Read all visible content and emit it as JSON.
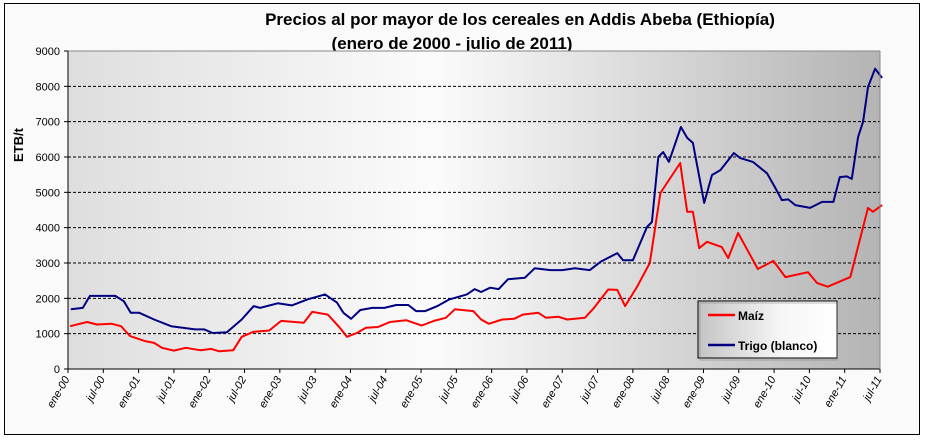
{
  "chart_data": {
    "type": "line",
    "title": "Precios al por mayor de los cereales en Addis Abeba (Ethiopía)",
    "subtitle": "(enero de 2000 - julio de 2011)",
    "xlabel": "",
    "ylabel": "ETB/t",
    "ylim": [
      0,
      9000
    ],
    "yticks": [
      0,
      1000,
      2000,
      3000,
      4000,
      5000,
      6000,
      7000,
      8000,
      9000
    ],
    "xlim": [
      2000.0,
      2011.5
    ],
    "xtick_labels": [
      "ene-00",
      "jul-00",
      "ene-01",
      "jul-01",
      "ene-02",
      "jul-02",
      "ene-03",
      "jul-03",
      "ene-04",
      "jul-04",
      "ene-05",
      "jul-05",
      "ene-06",
      "jul-06",
      "ene-07",
      "jul-07",
      "ene-08",
      "jul-08",
      "ene-09",
      "jul-09",
      "ene-10",
      "jul-10",
      "ene-11",
      "jul-11"
    ],
    "grid": true,
    "legend_position": "bottom-right",
    "x_units": "decimal year",
    "series": [
      {
        "name": "Maíz",
        "color": "#ff0000",
        "x": [
          2000.03,
          2000.27,
          2000.41,
          2000.62,
          2000.75,
          2000.88,
          2001.09,
          2001.22,
          2001.33,
          2001.5,
          2001.67,
          2001.88,
          2002.03,
          2002.14,
          2002.34,
          2002.46,
          2002.62,
          2002.85,
          2003.02,
          2003.34,
          2003.46,
          2003.68,
          2003.85,
          2003.95,
          2004.09,
          2004.22,
          2004.39,
          2004.56,
          2004.79,
          2004.89,
          2005.01,
          2005.18,
          2005.35,
          2005.48,
          2005.74,
          2005.85,
          2005.96,
          2006.15,
          2006.32,
          2006.44,
          2006.66,
          2006.77,
          2006.94,
          2007.07,
          2007.32,
          2007.45,
          2007.65,
          2007.78,
          2007.89,
          2008.06,
          2008.24,
          2008.39,
          2008.67,
          2008.77,
          2008.85,
          2008.94,
          2009.05,
          2009.26,
          2009.35,
          2009.49,
          2009.77,
          2009.99,
          2010.16,
          2010.48,
          2010.61,
          2010.76,
          2011.08,
          2011.33,
          2011.4,
          2011.53
        ],
        "values": [
          1210,
          1330,
          1260,
          1280,
          1210,
          930,
          790,
          740,
          600,
          520,
          600,
          530,
          570,
          500,
          530,
          910,
          1050,
          1090,
          1360,
          1310,
          1620,
          1540,
          1170,
          910,
          1020,
          1170,
          1190,
          1330,
          1380,
          1310,
          1230,
          1360,
          1450,
          1690,
          1640,
          1400,
          1280,
          1400,
          1420,
          1540,
          1590,
          1450,
          1480,
          1400,
          1450,
          1730,
          2250,
          2240,
          1780,
          2330,
          3000,
          4980,
          5830,
          4450,
          4450,
          3420,
          3600,
          3450,
          3140,
          3850,
          2830,
          3060,
          2600,
          2740,
          2430,
          2330,
          2600,
          4560,
          4450,
          4640
        ]
      },
      {
        "name": "Trigo (blanco)",
        "color": "#000080",
        "x": [
          2000.04,
          2000.21,
          2000.31,
          2000.5,
          2000.67,
          2000.79,
          2000.89,
          2001.01,
          2001.22,
          2001.46,
          2001.8,
          2001.93,
          2002.05,
          2002.25,
          2002.46,
          2002.63,
          2002.72,
          2002.97,
          2003.17,
          2003.39,
          2003.64,
          2003.81,
          2003.9,
          2004.01,
          2004.14,
          2004.31,
          2004.48,
          2004.65,
          2004.82,
          2004.93,
          2005.06,
          2005.23,
          2005.4,
          2005.65,
          2005.76,
          2005.85,
          2005.98,
          2006.1,
          2006.23,
          2006.47,
          2006.61,
          2006.83,
          2007.0,
          2007.18,
          2007.39,
          2007.54,
          2007.78,
          2007.86,
          2008.0,
          2008.2,
          2008.27,
          2008.36,
          2008.43,
          2008.51,
          2008.68,
          2008.77,
          2008.85,
          2009.01,
          2009.12,
          2009.24,
          2009.43,
          2009.52,
          2009.7,
          2009.9,
          2010.01,
          2010.11,
          2010.2,
          2010.3,
          2010.51,
          2010.68,
          2010.84,
          2010.93,
          2011.03,
          2011.1,
          2011.19,
          2011.26,
          2011.33,
          2011.43,
          2011.53
        ],
        "values": [
          1690,
          1730,
          2070,
          2070,
          2070,
          1920,
          1590,
          1590,
          1400,
          1210,
          1120,
          1120,
          1020,
          1040,
          1400,
          1780,
          1730,
          1860,
          1800,
          1970,
          2110,
          1880,
          1590,
          1420,
          1670,
          1730,
          1730,
          1810,
          1810,
          1640,
          1640,
          1780,
          1970,
          2110,
          2260,
          2180,
          2300,
          2260,
          2540,
          2580,
          2850,
          2800,
          2800,
          2850,
          2800,
          3030,
          3280,
          3080,
          3080,
          4020,
          4160,
          6000,
          6140,
          5860,
          6850,
          6540,
          6400,
          4700,
          5490,
          5630,
          6110,
          5970,
          5860,
          5540,
          5150,
          4780,
          4800,
          4640,
          4560,
          4730,
          4730,
          5430,
          5450,
          5380,
          6570,
          7000,
          7980,
          8500,
          8240
        ]
      }
    ]
  }
}
